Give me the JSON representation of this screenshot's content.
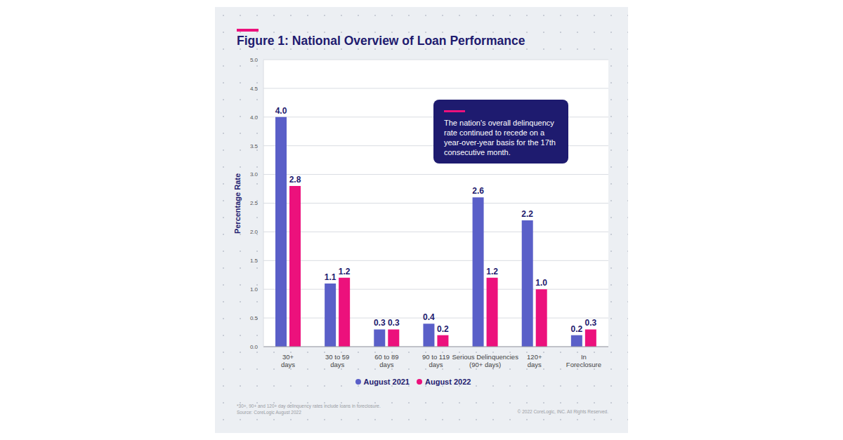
{
  "chart_data": {
    "type": "bar",
    "title": "Figure 1: National Overview of Loan Performance",
    "y_label": "Percentage Rate",
    "categories": [
      "30+\ndays",
      "30 to 59\ndays",
      "60 to 89\ndays",
      "90 to 119\ndays",
      "Serious Delinquencies\n(90+ days)",
      "120+\ndays",
      "In\nForeclosure"
    ],
    "series": [
      {
        "name": "August 2021",
        "color": "#5a5fc8",
        "values": [
          4.0,
          1.1,
          0.3,
          0.4,
          2.6,
          2.2,
          0.2
        ],
        "value_labels": [
          "4.0",
          "1.1",
          "0.3",
          "0.4",
          "2.6",
          "2.2",
          "0.2"
        ]
      },
      {
        "name": "August 2022",
        "color": "#ec117c",
        "values": [
          2.8,
          1.2,
          0.3,
          0.2,
          1.2,
          1.0,
          0.3
        ],
        "value_labels": [
          "2.8",
          "1.2",
          "0.3",
          "0.2",
          "1.2",
          "1.0",
          "0.3"
        ]
      }
    ],
    "ylim": [
      0,
      5
    ],
    "yticks": [
      {
        "value": 0,
        "label": "0.0"
      },
      0.5,
      {
        "value": 1,
        "label": "1.0"
      },
      1.5,
      {
        "value": 2,
        "label": "2.0"
      },
      2.5,
      {
        "value": 3,
        "label": "3.0"
      },
      3.5,
      {
        "value": 4,
        "label": "4.0"
      },
      4.5,
      {
        "value": 5,
        "label": "5.0"
      }
    ],
    "grid": true,
    "legend": "bottom",
    "data_labels": true,
    "annotation": "The nation's overall delinquency rate continued to recede on a year-over-year basis for the 17th consecutive month.",
    "footnotes": [
      "*30+, 90+ and 120+ day delinquency rates include loans in foreclosure.",
      "Source: CoreLogic August 2022"
    ],
    "copyright": "© 2022 CoreLogic, INC. All Rights Reserved."
  }
}
